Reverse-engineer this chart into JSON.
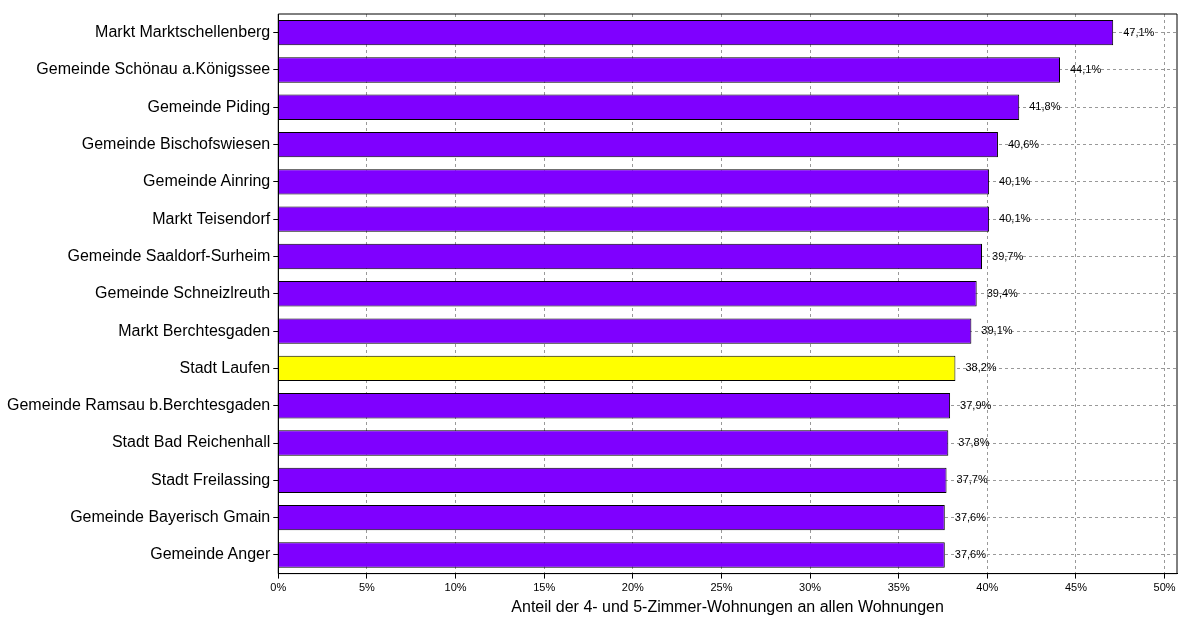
{
  "chart_data": {
    "type": "bar",
    "orientation": "horizontal",
    "xlabel": "Anteil der 4- und 5-Zimmer-Wohnungen an allen Wohnungen",
    "categories": [
      "Markt Marktschellenberg",
      "Gemeinde Schönau a.Königssee",
      "Gemeinde Piding",
      "Gemeinde Bischofswiesen",
      "Gemeinde Ainring",
      "Markt Teisendorf",
      "Gemeinde Saaldorf-Surheim",
      "Gemeinde Schneizlreuth",
      "Markt Berchtesgaden",
      "Stadt Laufen",
      "Gemeinde Ramsau b.Berchtesgaden",
      "Stadt Bad Reichenhall",
      "Stadt Freilassing",
      "Gemeinde Bayerisch Gmain",
      "Gemeinde Anger"
    ],
    "values": [
      47.1,
      44.1,
      41.8,
      40.6,
      40.1,
      40.1,
      39.7,
      39.4,
      39.1,
      38.2,
      37.9,
      37.8,
      37.7,
      37.6,
      37.6
    ],
    "value_labels": [
      "47,1%",
      "44,1%",
      "41,8%",
      "40,6%",
      "40,1%",
      "40,1%",
      "39,7%",
      "39,4%",
      "39,1%",
      "38,2%",
      "37,9%",
      "37,8%",
      "37,7%",
      "37,6%",
      "37,6%"
    ],
    "colors": [
      "#7f00ff",
      "#7f00ff",
      "#7f00ff",
      "#7f00ff",
      "#7f00ff",
      "#7f00ff",
      "#7f00ff",
      "#7f00ff",
      "#7f00ff",
      "#ffff00",
      "#7f00ff",
      "#7f00ff",
      "#7f00ff",
      "#7f00ff",
      "#7f00ff"
    ],
    "xlim": [
      0,
      50.7
    ],
    "xticks": [
      {
        "value": 0,
        "label": "0%"
      },
      {
        "value": 5,
        "label": "5%"
      },
      {
        "value": 10,
        "label": "10%"
      },
      {
        "value": 15,
        "label": "15%"
      },
      {
        "value": 20,
        "label": "20%"
      },
      {
        "value": 25,
        "label": "25%"
      },
      {
        "value": 30,
        "label": "30%"
      },
      {
        "value": 35,
        "label": "35%"
      },
      {
        "value": 40,
        "label": "40%"
      },
      {
        "value": 45,
        "label": "45%"
      },
      {
        "value": 50,
        "label": "50%"
      }
    ],
    "grid": true,
    "legend": false
  }
}
